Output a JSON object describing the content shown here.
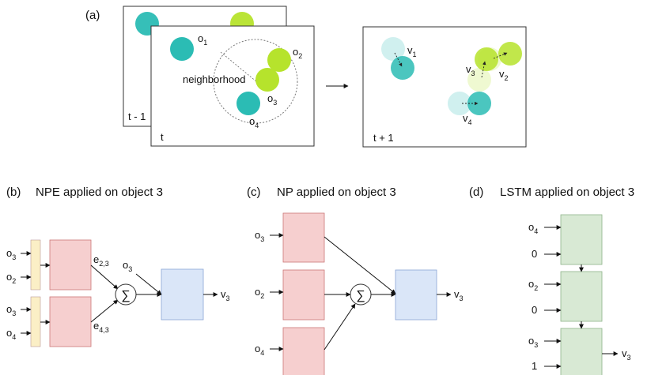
{
  "panel_a": {
    "tag": "(a)",
    "frame_back_label": "t - 1",
    "frame_front_label": "t",
    "frame_next_label": "t + 1",
    "neighborhood_label": "neighborhood",
    "objects": [
      {
        "letter": "o",
        "index": "1"
      },
      {
        "letter": "o",
        "index": "2"
      },
      {
        "letter": "o",
        "index": "3"
      },
      {
        "letter": "o",
        "index": "4"
      }
    ],
    "velocities": [
      {
        "letter": "v",
        "index": "1"
      },
      {
        "letter": "v",
        "index": "2"
      },
      {
        "letter": "v",
        "index": "3"
      },
      {
        "letter": "v",
        "index": "4"
      }
    ]
  },
  "panel_b": {
    "tag": "(b)",
    "title": "NPE applied on object 3",
    "inputs": [
      {
        "letter": "o",
        "index": "3"
      },
      {
        "letter": "o",
        "index": "2"
      },
      {
        "letter": "o",
        "index": "3"
      },
      {
        "letter": "o",
        "index": "4"
      }
    ],
    "edges": [
      {
        "letter": "e",
        "index": "2,3"
      },
      {
        "letter": "e",
        "index": "4,3"
      }
    ],
    "self_input": {
      "letter": "o",
      "index": "3"
    },
    "sum_symbol": "∑",
    "output": {
      "letter": "v",
      "index": "3"
    }
  },
  "panel_c": {
    "tag": "(c)",
    "title": "NP applied on object 3",
    "inputs": [
      {
        "letter": "o",
        "index": "3"
      },
      {
        "letter": "o",
        "index": "2"
      },
      {
        "letter": "o",
        "index": "4"
      }
    ],
    "sum_symbol": "∑",
    "output": {
      "letter": "v",
      "index": "3"
    }
  },
  "panel_d": {
    "tag": "(d)",
    "title": "LSTM applied on object 3",
    "inputs": [
      {
        "letter": "o",
        "index": "4",
        "value": "0"
      },
      {
        "letter": "o",
        "index": "2",
        "value": "0"
      },
      {
        "letter": "o",
        "index": "3",
        "value": "1"
      }
    ],
    "output": {
      "letter": "v",
      "index": "3"
    }
  },
  "colors": {
    "teal": "#2bbcb4",
    "lime": "#b6e32c",
    "pink": "#f6cfcf",
    "blue": "#dae6f8",
    "green": "#d8e9d4",
    "yellow": "#fbefc6"
  }
}
